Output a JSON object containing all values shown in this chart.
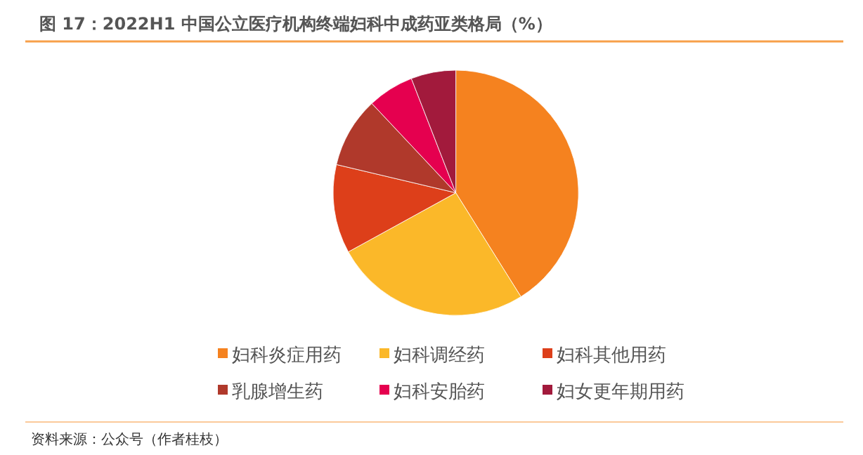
{
  "chart_data": {
    "type": "pie",
    "title": "图 17：2022H1 中国公立医疗机构终端妇科中成药亚类格局（%）",
    "categories": [
      "妇科炎症用药",
      "妇科调经药",
      "妇科其他用药",
      "乳腺增生药",
      "妇科安胎药",
      "妇女更年期用药"
    ],
    "values": [
      41.1,
      25.9,
      11.7,
      9.3,
      6.1,
      5.9
    ],
    "colors": [
      "#f5821f",
      "#fbb829",
      "#dd3f1a",
      "#b0392b",
      "#e5004f",
      "#a21a3c"
    ],
    "legend": "bottom",
    "annotations": [
      "资料来源：公众号（作者桂枝）"
    ]
  }
}
